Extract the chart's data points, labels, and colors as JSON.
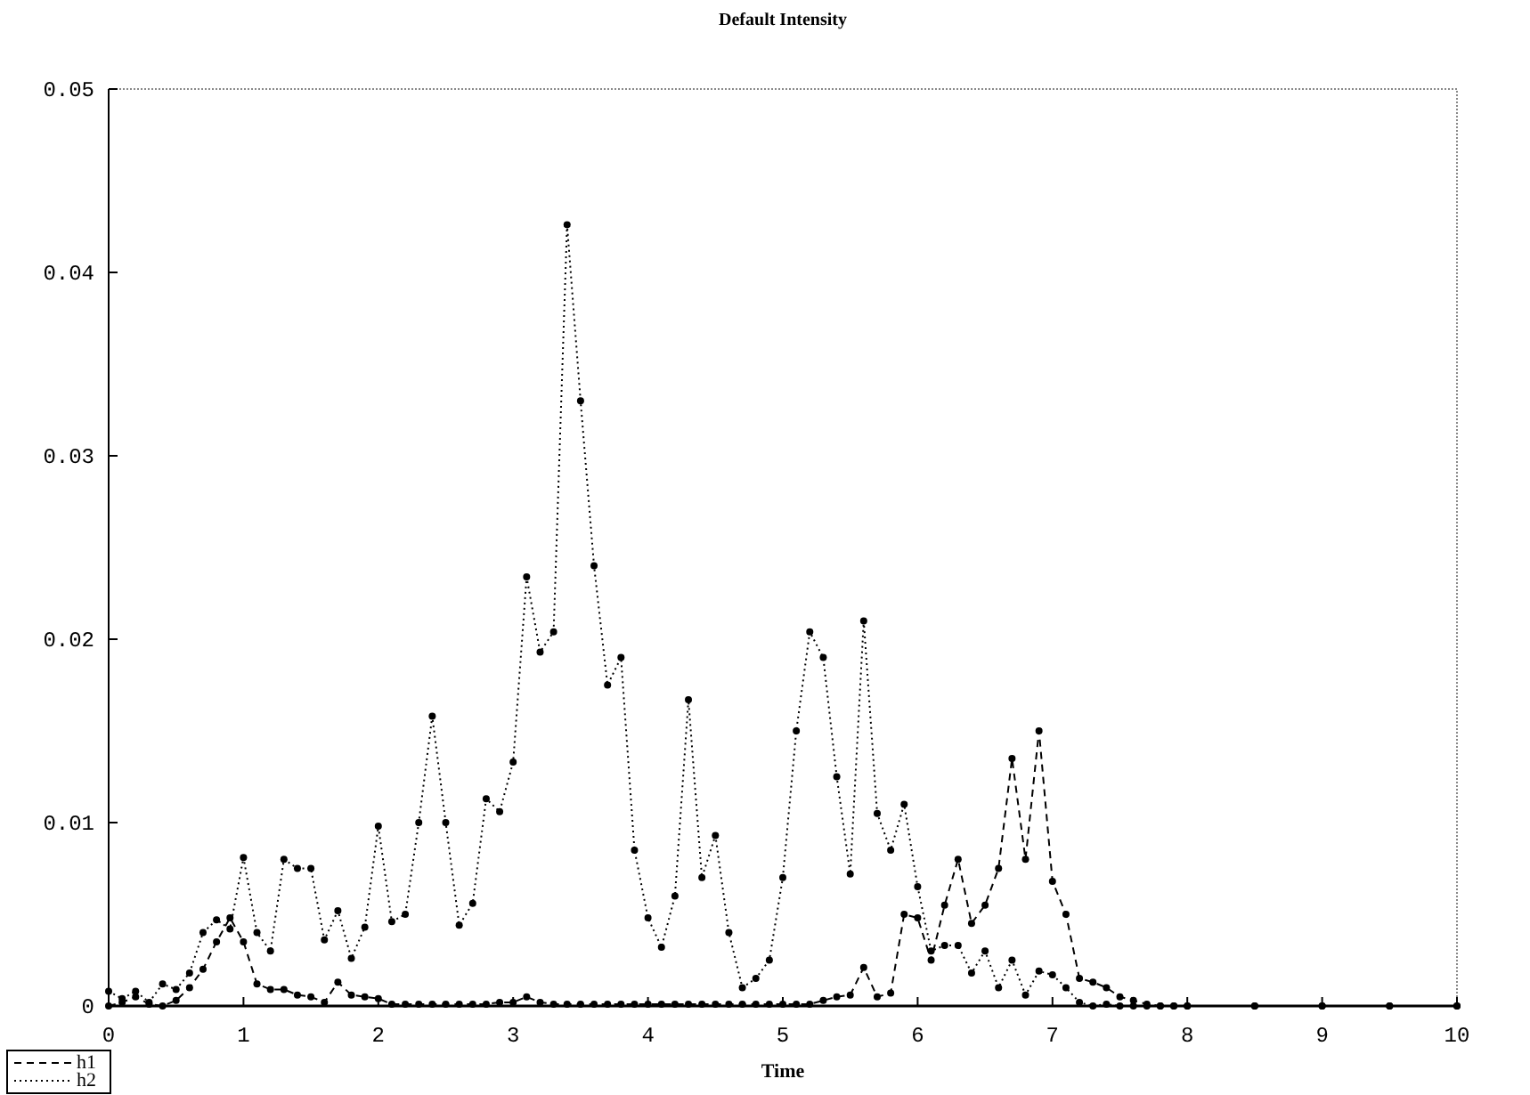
{
  "chart_data": {
    "type": "line",
    "title": "Default Intensity",
    "xlabel": "Time",
    "x": [
      0,
      0.1,
      0.2,
      0.3,
      0.4,
      0.5,
      0.6,
      0.7,
      0.8,
      0.9,
      1,
      1.1,
      1.2,
      1.3,
      1.4,
      1.5,
      1.6,
      1.7,
      1.8,
      1.9,
      2,
      2.1,
      2.2,
      2.3,
      2.4,
      2.5,
      2.6,
      2.7,
      2.8,
      2.9,
      3,
      3.1,
      3.2,
      3.3,
      3.4,
      3.5,
      3.6,
      3.7,
      3.8,
      3.9,
      4,
      4.1,
      4.2,
      4.3,
      4.4,
      4.5,
      4.6,
      4.7,
      4.8,
      4.9,
      5,
      5.1,
      5.2,
      5.3,
      5.4,
      5.5,
      5.6,
      5.7,
      5.8,
      5.9,
      6,
      6.1,
      6.2,
      6.3,
      6.4,
      6.5,
      6.6,
      6.7,
      6.8,
      6.9,
      7,
      7.1,
      7.2,
      7.3,
      7.4,
      7.5,
      7.6,
      7.7,
      7.8,
      7.9,
      8,
      8.5,
      9,
      9.5,
      10
    ],
    "series": [
      {
        "name": "h1",
        "color": "#000000",
        "line_style": "dashed",
        "values": [
          0,
          0.0002,
          0.0005,
          0.0001,
          0,
          0.0003,
          0.001,
          0.002,
          0.0035,
          0.0048,
          0.0035,
          0.0012,
          0.0009,
          0.0009,
          0.0006,
          0.0005,
          0.0002,
          0.0013,
          0.0006,
          0.0005,
          0.0004,
          0.0001,
          0.0001,
          0.0001,
          0.0001,
          0.0001,
          0.0001,
          0.0001,
          0.0001,
          0.0002,
          0.0002,
          0.0005,
          0.0002,
          0.0001,
          0.0001,
          0.0001,
          0.0001,
          0.0001,
          0.0001,
          0.0001,
          0.0001,
          0.0001,
          0.0001,
          0.0001,
          0.0001,
          0.0001,
          0.0001,
          0.0001,
          0.0001,
          0.0001,
          0.0001,
          0.0001,
          0.0001,
          0.0003,
          0.0005,
          0.0006,
          0.0021,
          0.0005,
          0.0007,
          0.005,
          0.0048,
          0.0025,
          0.0055,
          0.008,
          0.0045,
          0.0055,
          0.0075,
          0.0135,
          0.008,
          0.015,
          0.0068,
          0.005,
          0.0015,
          0.0013,
          0.001,
          0.0005,
          0.0003,
          0.0001,
          0,
          0,
          0,
          0,
          0,
          0,
          0
        ]
      },
      {
        "name": "h2",
        "color": "#000000",
        "line_style": "dotted",
        "values": [
          0.0008,
          0.0004,
          0.0008,
          0.0002,
          0.0012,
          0.0009,
          0.0018,
          0.004,
          0.0047,
          0.0042,
          0.0081,
          0.004,
          0.003,
          0.008,
          0.0075,
          0.0075,
          0.0036,
          0.0052,
          0.0026,
          0.0043,
          0.0098,
          0.0046,
          0.005,
          0.01,
          0.0158,
          0.01,
          0.0044,
          0.0056,
          0.0113,
          0.0106,
          0.0133,
          0.0234,
          0.0193,
          0.0204,
          0.0426,
          0.033,
          0.024,
          0.0175,
          0.019,
          0.0085,
          0.0048,
          0.0032,
          0.006,
          0.0167,
          0.007,
          0.0093,
          0.004,
          0.001,
          0.0015,
          0.0025,
          0.007,
          0.015,
          0.0204,
          0.019,
          0.0125,
          0.0072,
          0.021,
          0.0105,
          0.0085,
          0.011,
          0.0065,
          0.003,
          0.0033,
          0.0033,
          0.0018,
          0.003,
          0.001,
          0.0025,
          0.0006,
          0.0019,
          0.0017,
          0.001,
          0.0002,
          0,
          0.0001,
          0,
          0,
          0,
          0,
          0,
          0,
          0,
          0,
          0,
          0
        ]
      }
    ],
    "xlim": [
      0,
      10
    ],
    "xticks": [
      0,
      1,
      2,
      3,
      4,
      5,
      6,
      7,
      8,
      9,
      10
    ],
    "ylim": [
      0,
      0.05
    ],
    "yticks": [
      0,
      0.01,
      0.02,
      0.03,
      0.04,
      0.05
    ],
    "grid": false,
    "legend": "bottom left",
    "marker": "circle"
  }
}
